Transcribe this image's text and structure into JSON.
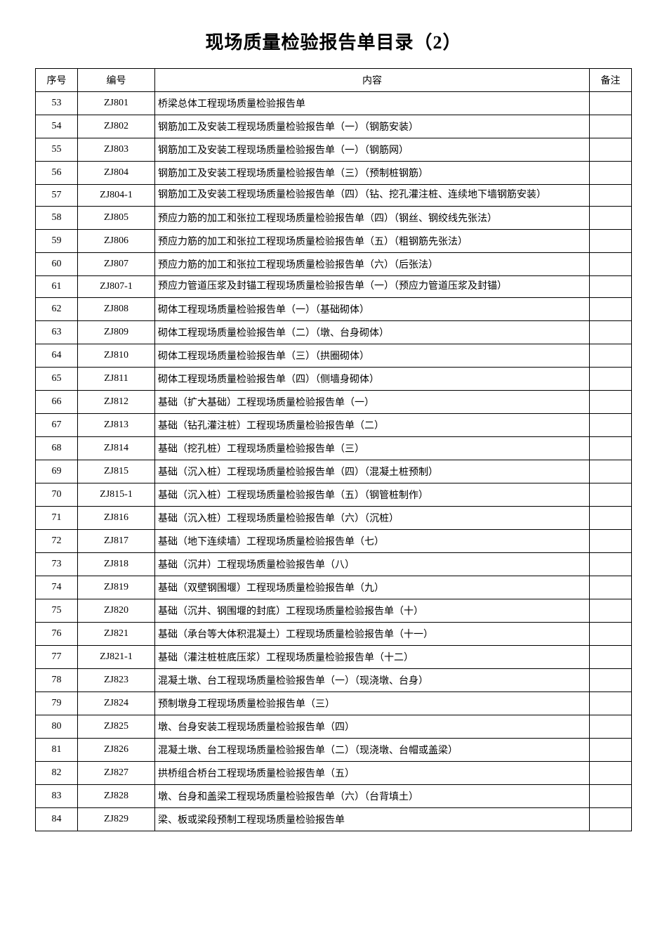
{
  "title": "现场质量检验报告单目录（2）",
  "headers": {
    "seq": "序号",
    "code": "编号",
    "content": "内容",
    "remark": "备注"
  },
  "rows": [
    {
      "seq": "53",
      "code": "ZJ801",
      "content": "桥梁总体工程现场质量检验报告单",
      "remark": ""
    },
    {
      "seq": "54",
      "code": "ZJ802",
      "content": "钢筋加工及安装工程现场质量检验报告单（一）（钢筋安装）",
      "remark": ""
    },
    {
      "seq": "55",
      "code": "ZJ803",
      "content": "钢筋加工及安装工程现场质量检验报告单（一）（钢筋网）",
      "remark": ""
    },
    {
      "seq": "56",
      "code": "ZJ804",
      "content": "钢筋加工及安装工程现场质量检验报告单（三）（预制桩钢筋）",
      "remark": ""
    },
    {
      "seq": "57",
      "code": "ZJ804-1",
      "content": "钢筋加工及安装工程现场质量检验报告单（四）（钻、挖孔灌注桩、连续地下墙钢筋安装）",
      "remark": ""
    },
    {
      "seq": "58",
      "code": "ZJ805",
      "content": "预应力筋的加工和张拉工程现场质量检验报告单（四）（钢丝、钢绞线先张法）",
      "remark": ""
    },
    {
      "seq": "59",
      "code": "ZJ806",
      "content": "预应力筋的加工和张拉工程现场质量检验报告单（五）（粗钢筋先张法）",
      "remark": ""
    },
    {
      "seq": "60",
      "code": "ZJ807",
      "content": "预应力筋的加工和张拉工程现场质量检验报告单（六）（后张法）",
      "remark": ""
    },
    {
      "seq": "61",
      "code": "ZJ807-1",
      "content": "预应力管道压浆及封锚工程现场质量检验报告单（一）（预应力管道压浆及封锚）",
      "remark": ""
    },
    {
      "seq": "62",
      "code": "ZJ808",
      "content": "砌体工程现场质量检验报告单（一）（基础砌体）",
      "remark": ""
    },
    {
      "seq": "63",
      "code": "ZJ809",
      "content": "砌体工程现场质量检验报告单（二）（墩、台身砌体）",
      "remark": ""
    },
    {
      "seq": "64",
      "code": "ZJ810",
      "content": "砌体工程现场质量检验报告单（三）（拱圈砌体）",
      "remark": ""
    },
    {
      "seq": "65",
      "code": "ZJ811",
      "content": "砌体工程现场质量检验报告单（四）（侧墙身砌体）",
      "remark": ""
    },
    {
      "seq": "66",
      "code": "ZJ812",
      "content": "基础（扩大基础）工程现场质量检验报告单（一）",
      "remark": ""
    },
    {
      "seq": "67",
      "code": "ZJ813",
      "content": "基础（钻孔灌注桩）工程现场质量检验报告单（二）",
      "remark": ""
    },
    {
      "seq": "68",
      "code": "ZJ814",
      "content": "基础（挖孔桩）工程现场质量检验报告单（三）",
      "remark": ""
    },
    {
      "seq": "69",
      "code": "ZJ815",
      "content": "基础（沉入桩）工程现场质量检验报告单（四）（混凝土桩预制）",
      "remark": ""
    },
    {
      "seq": "70",
      "code": "ZJ815-1",
      "content": "基础（沉入桩）工程现场质量检验报告单（五）（钢管桩制作）",
      "remark": ""
    },
    {
      "seq": "71",
      "code": "ZJ816",
      "content": "基础（沉入桩）工程现场质量检验报告单（六）（沉桩）",
      "remark": ""
    },
    {
      "seq": "72",
      "code": "ZJ817",
      "content": "基础（地下连续墙）工程现场质量检验报告单（七）",
      "remark": ""
    },
    {
      "seq": "73",
      "code": "ZJ818",
      "content": "基础（沉井）工程现场质量检验报告单（八）",
      "remark": ""
    },
    {
      "seq": "74",
      "code": "ZJ819",
      "content": "基础（双壁钢围堰）工程现场质量检验报告单（九）",
      "remark": ""
    },
    {
      "seq": "75",
      "code": "ZJ820",
      "content": "基础（沉井、钢围堰的封底）工程现场质量检验报告单（十）",
      "remark": ""
    },
    {
      "seq": "76",
      "code": "ZJ821",
      "content": "基础（承台等大体积混凝土）工程现场质量检验报告单（十一）",
      "remark": ""
    },
    {
      "seq": "77",
      "code": "ZJ821-1",
      "content": "基础（灌注桩桩底压浆）工程现场质量检验报告单（十二）",
      "remark": ""
    },
    {
      "seq": "78",
      "code": "ZJ823",
      "content": "混凝土墩、台工程现场质量检验报告单（一）（现浇墩、台身）",
      "remark": ""
    },
    {
      "seq": "79",
      "code": "ZJ824",
      "content": "预制墩身工程现场质量检验报告单（三）",
      "remark": ""
    },
    {
      "seq": "80",
      "code": "ZJ825",
      "content": "墩、台身安装工程现场质量检验报告单（四）",
      "remark": ""
    },
    {
      "seq": "81",
      "code": "ZJ826",
      "content": "混凝土墩、台工程现场质量检验报告单（二）（现浇墩、台帽或盖梁）",
      "remark": ""
    },
    {
      "seq": "82",
      "code": "ZJ827",
      "content": "拱桥组合桥台工程现场质量检验报告单（五）",
      "remark": ""
    },
    {
      "seq": "83",
      "code": "ZJ828",
      "content": "墩、台身和盖梁工程现场质量检验报告单（六）（台背填土）",
      "remark": ""
    },
    {
      "seq": "84",
      "code": "ZJ829",
      "content": "梁、板或梁段预制工程现场质量检验报告单",
      "remark": ""
    }
  ]
}
